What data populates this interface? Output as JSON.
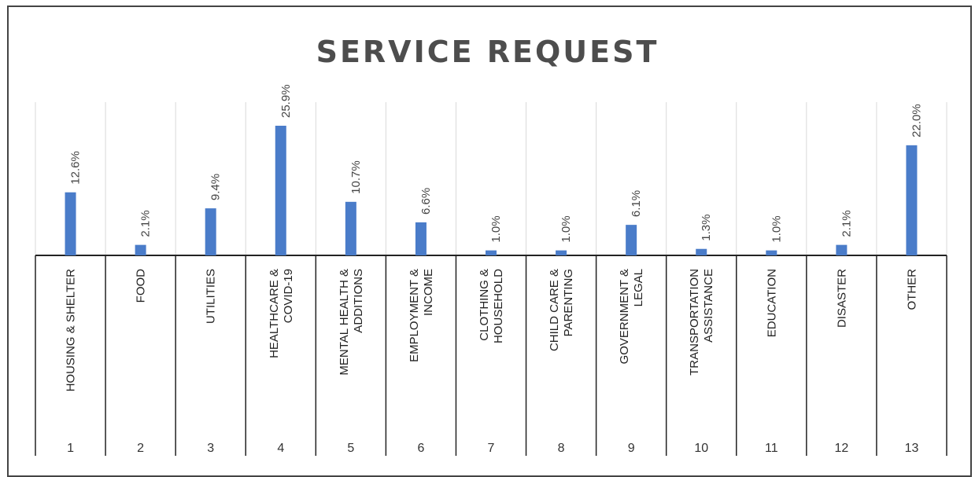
{
  "chart_data": {
    "type": "bar",
    "title": "SERVICE REQUEST",
    "categories": [
      "HOUSING & SHELTER",
      "FOOD",
      "UTILITIES",
      "HEALTHCARE & COVID-19",
      "MENTAL HEALTH & ADDITIONS",
      "EMPLOYMENT & INCOME",
      "CLOTHING & HOUSEHOLD",
      "CHILD CARE & PARENTING",
      "GOVERNMENT & LEGAL",
      "TRANSPORTATION ASSISTANCE",
      "EDUCATION",
      "DISASTER",
      "OTHER"
    ],
    "category_lines": [
      [
        "HOUSING & SHELTER"
      ],
      [
        "FOOD"
      ],
      [
        "UTILITIES"
      ],
      [
        "HEALTHCARE &",
        "COVID-19"
      ],
      [
        "MENTAL HEALTH &",
        "ADDITIONS"
      ],
      [
        "EMPLOYMENT &",
        "INCOME"
      ],
      [
        "CLOTHING &",
        "HOUSEHOLD"
      ],
      [
        "CHILD CARE &",
        "PARENTING"
      ],
      [
        "GOVERNMENT &",
        "LEGAL"
      ],
      [
        "TRANSPORTATION",
        "ASSISTANCE"
      ],
      [
        "EDUCATION"
      ],
      [
        "DISASTER"
      ],
      [
        "OTHER"
      ]
    ],
    "index_labels": [
      "1",
      "2",
      "3",
      "4",
      "5",
      "6",
      "7",
      "8",
      "9",
      "10",
      "11",
      "12",
      "13"
    ],
    "values": [
      12.6,
      2.1,
      9.4,
      25.9,
      10.7,
      6.6,
      1.0,
      1.0,
      6.1,
      1.3,
      1.0,
      2.1,
      22.0
    ],
    "value_labels": [
      "12.6%",
      "2.1%",
      "9.4%",
      "25.9%",
      "10.7%",
      "6.6%",
      "1.0%",
      "1.0%",
      "6.1%",
      "1.3%",
      "1.0%",
      "2.1%",
      "22.0%"
    ],
    "xlabel": "",
    "ylabel": "",
    "ylim": [
      0,
      26
    ],
    "grid": true,
    "legend": "none",
    "bar_color": "#4a7cc9"
  }
}
